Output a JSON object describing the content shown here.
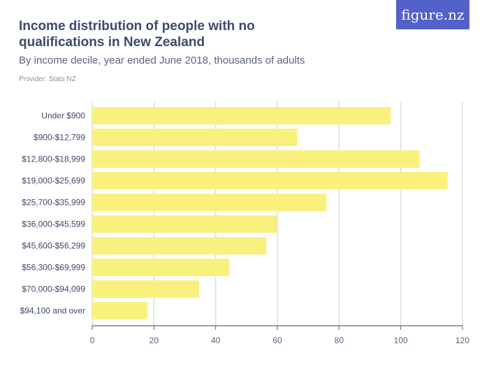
{
  "header": {
    "title": "Income distribution of people with no qualifications in New Zealand",
    "subtitle": "By income decile, year ended June 2018, thousands of adults",
    "provider": "Provider: Stats NZ",
    "logo": "figure.nz"
  },
  "chart_data": {
    "type": "bar",
    "orientation": "horizontal",
    "title": "Income distribution of people with no qualifications in New Zealand",
    "subtitle": "By income decile, year ended June 2018, thousands of adults",
    "categories": [
      "Under $900",
      "$900-$12,799",
      "$12,800-$18,999",
      "$19,000-$25,699",
      "$25,700-$35,999",
      "$36,000-$45,599",
      "$45,600-$56,299",
      "$56,300-$69,999",
      "$70,000-$94,099",
      "$94,100 and over"
    ],
    "values": [
      96.7,
      66.5,
      106.1,
      115.2,
      75.9,
      59.9,
      56.5,
      44.5,
      34.7,
      18.0
    ],
    "xlim": [
      0,
      120
    ],
    "xticks": [
      0,
      20,
      40,
      60,
      80,
      100,
      120
    ],
    "grid": true,
    "bar_color": "#f9f17e",
    "grid_color": "#dddddd"
  }
}
